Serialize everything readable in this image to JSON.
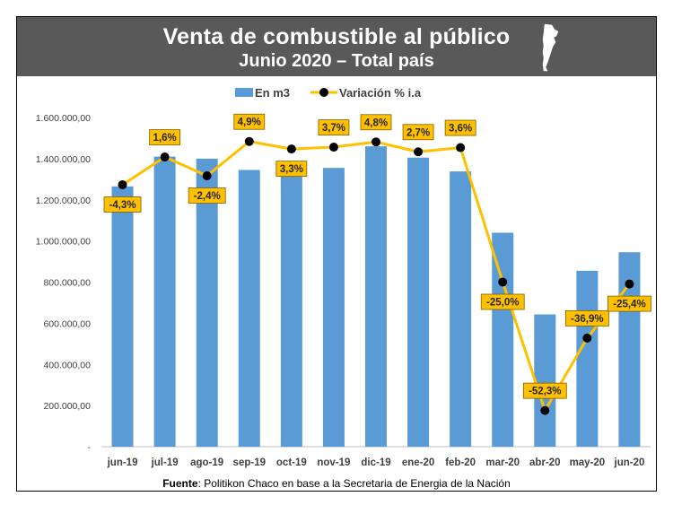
{
  "header": {
    "title": "Venta de combustible al público",
    "subtitle": "Junio 2020 – Total país",
    "map_icon": "argentina-map-icon"
  },
  "source": {
    "label": "Fuente",
    "text": ": Politikon Chaco en base a la Secretaria de Energia de la Nación"
  },
  "colors": {
    "bar": "#5B9BD5",
    "line": "#FFC000",
    "marker": "#000000",
    "label_bg": "#FFC000",
    "header_bg": "#595959"
  },
  "chart_data": {
    "type": "bar",
    "categories": [
      "jun-19",
      "jul-19",
      "ago-19",
      "sep-19",
      "oct-19",
      "nov-19",
      "dic-19",
      "ene-20",
      "feb-20",
      "mar-20",
      "abr-20",
      "may-20",
      "jun-20"
    ],
    "series": [
      {
        "name": "En m3",
        "type": "bar",
        "values": [
          1265000,
          1410000,
          1400000,
          1345000,
          1340000,
          1355000,
          1460000,
          1405000,
          1338000,
          1040000,
          643000,
          855000,
          945000
        ]
      },
      {
        "name": "Variación % i.a",
        "type": "line",
        "values": [
          -4.3,
          1.6,
          -2.4,
          4.9,
          3.3,
          3.7,
          4.8,
          2.7,
          3.6,
          -25.0,
          -52.3,
          -36.9,
          -25.4
        ],
        "labels": [
          "-4,3%",
          "1,6%",
          "-2,4%",
          "4,9%",
          "3,3%",
          "3,7%",
          "4,8%",
          "2,7%",
          "3,6%",
          "-25,0%",
          "-52,3%",
          "-36,9%",
          "-25,4%"
        ]
      }
    ],
    "y_ticks": [
      "-",
      "200.000,00",
      "400.000,00",
      "600.000,00",
      "800.000,00",
      "1.000.000,00",
      "1.200.000,00",
      "1.400.000,00",
      "1.600.000,00"
    ],
    "ylim": [
      0,
      1600000
    ],
    "secondary_ylim": [
      -60,
      10
    ],
    "legend_position": "top",
    "grid": false
  }
}
